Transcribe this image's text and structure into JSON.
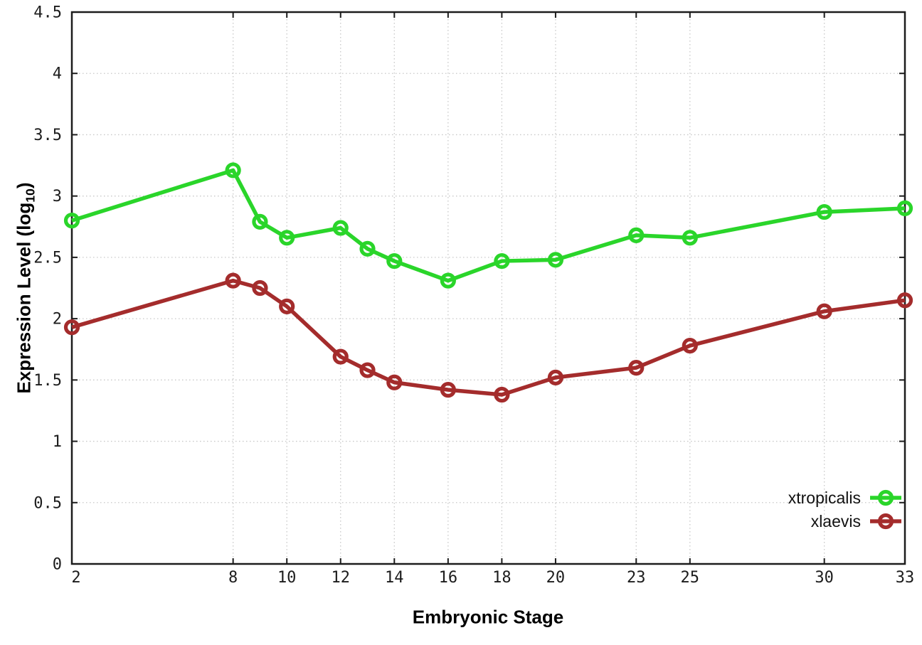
{
  "figure": {
    "xlabel": "Embryonic Stage",
    "ylabel_main": "Expression Level (log",
    "ylabel_sub": "10",
    "ylabel_close": ")"
  },
  "chart_data": {
    "type": "line",
    "title": "",
    "xlabel": "Embryonic Stage",
    "ylabel": "Expression Level (log10)",
    "x": [
      2,
      8,
      9,
      10,
      12,
      13,
      14,
      16,
      18,
      20,
      23,
      25,
      30,
      33
    ],
    "series": [
      {
        "name": "xtropicalis",
        "color": "#2AD52A",
        "values": [
          2.8,
          3.21,
          2.79,
          2.66,
          2.74,
          2.57,
          2.47,
          2.31,
          2.47,
          2.48,
          2.68,
          2.66,
          2.87,
          2.9
        ]
      },
      {
        "name": "xlaevis",
        "color": "#A42C2C",
        "values": [
          1.93,
          2.31,
          2.25,
          2.1,
          1.69,
          1.58,
          1.48,
          1.42,
          1.38,
          1.52,
          1.6,
          1.78,
          2.06,
          2.15
        ]
      }
    ],
    "xlim": [
      2,
      33
    ],
    "ylim": [
      0,
      4.5
    ],
    "x_ticks": [
      2,
      8,
      10,
      12,
      14,
      16,
      18,
      20,
      23,
      25,
      30,
      33
    ],
    "x_tick_labels": [
      "2",
      "8",
      "10",
      "12",
      "14",
      "16",
      "18",
      "20",
      "23",
      "25",
      "30",
      "33"
    ],
    "y_ticks": [
      0,
      0.5,
      1,
      1.5,
      2,
      2.5,
      3,
      3.5,
      4,
      4.5
    ],
    "y_tick_labels": [
      "0",
      "0.5",
      "1",
      "1.5",
      "2",
      "2.5",
      "3",
      "3.5",
      "4",
      "4.5"
    ],
    "grid": true,
    "grid_style": "dotted",
    "legend_position": "inside-bottom-right",
    "marker": "open-circle",
    "colors": {
      "axis": "#1c1c1c",
      "grid": "#c8c8c8",
      "tick_text": "#1c1c1c",
      "legend_text": "#111111",
      "background": "#ffffff"
    }
  }
}
